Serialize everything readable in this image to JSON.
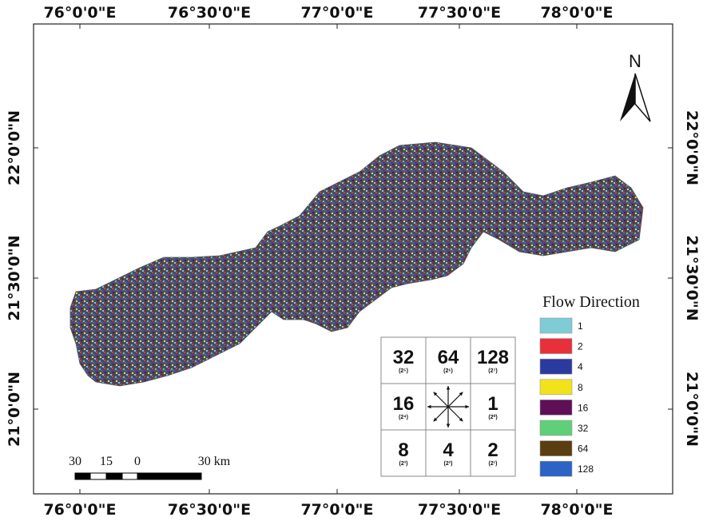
{
  "map": {
    "top_labels": [
      "76°0'0\"E",
      "76°30'0\"E",
      "77°0'0\"E",
      "77°30'0\"E",
      "78°0'0\"E"
    ],
    "bottom_labels": [
      "76°0'0\"E",
      "76°30'0\"E",
      "77°0'0\"E",
      "77°30'0\"E",
      "78°0'0\"E"
    ],
    "left_labels": [
      "22°0'0\"N",
      "21°30'0\"N",
      "21°0'0\"N"
    ],
    "right_labels": [
      "22°0'0\"N",
      "21°30'0\"N",
      "21°0'0\"N"
    ],
    "north": "N",
    "scale": {
      "labels": [
        "30",
        "15",
        "0",
        "30 km"
      ]
    },
    "legend": {
      "title": "Flow Direction",
      "items": [
        {
          "label": "1",
          "color": "#7fcbd6"
        },
        {
          "label": "2",
          "color": "#e8303a"
        },
        {
          "label": "4",
          "color": "#2b3a9e"
        },
        {
          "label": "8",
          "color": "#f2e21c"
        },
        {
          "label": "16",
          "color": "#5e0f55"
        },
        {
          "label": "32",
          "color": "#5fcf7a"
        },
        {
          "label": "64",
          "color": "#5a3d10"
        },
        {
          "label": "128",
          "color": "#2c63c4"
        }
      ]
    },
    "direction_grid": [
      {
        "value": "32",
        "power": "(2⁵)"
      },
      {
        "value": "64",
        "power": "(2⁶)"
      },
      {
        "value": "128",
        "power": "(2⁷)"
      },
      {
        "value": "16",
        "power": "(2⁴)"
      },
      {
        "value": "1",
        "power": "(2⁰)"
      },
      {
        "value": "8",
        "power": "(2³)"
      },
      {
        "value": "4",
        "power": "(2²)"
      },
      {
        "value": "2",
        "power": "(2¹)"
      }
    ]
  }
}
